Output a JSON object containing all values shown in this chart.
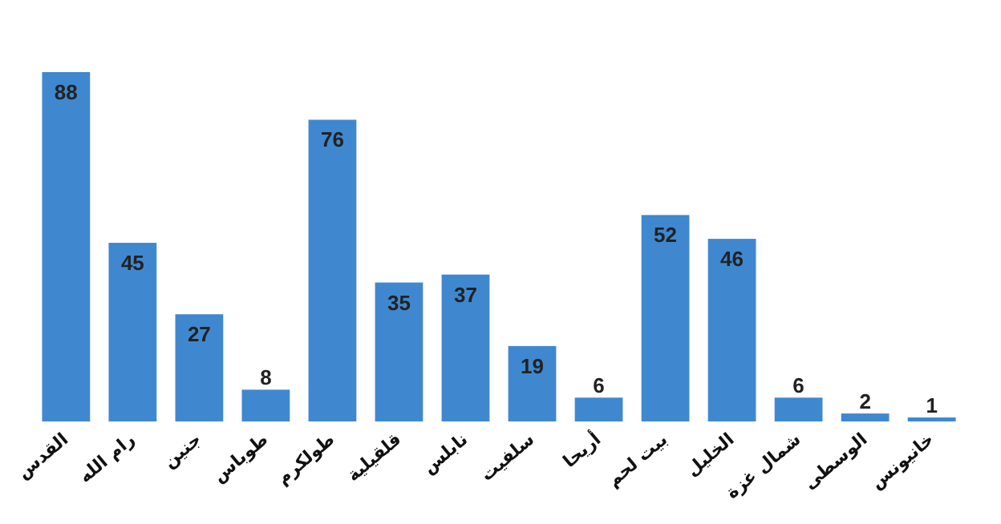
{
  "chart_data": {
    "type": "bar",
    "categories": [
      "القدس",
      "رام الله",
      "جنين",
      "طوباس",
      "طولكرم",
      "قلقيلية",
      "نابلس",
      "سلفيت",
      "أريحا",
      "بيت لحم",
      "الخليل",
      "شمال غزة",
      "الوسطى",
      "خانيونس"
    ],
    "values": [
      88,
      45,
      27,
      8,
      76,
      35,
      37,
      19,
      6,
      52,
      46,
      6,
      2,
      1
    ],
    "color": "#3f88d0",
    "data_labels": true
  }
}
